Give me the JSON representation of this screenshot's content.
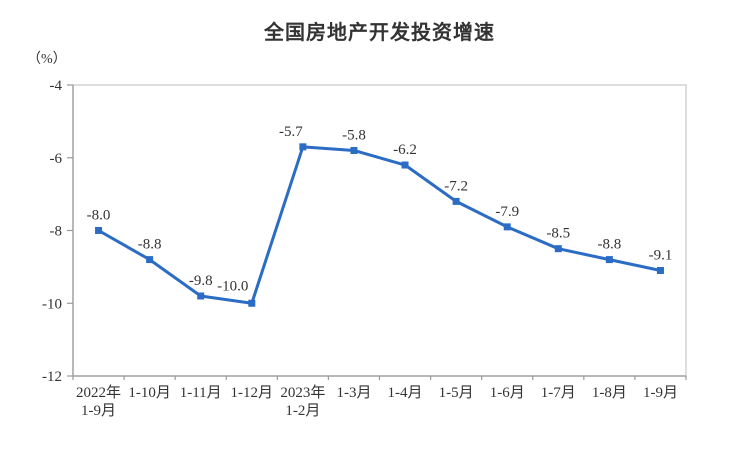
{
  "chart": {
    "title": "全国房地产开发投资增速",
    "unit_label": "（%）"
  },
  "chart_data": {
    "type": "line",
    "title": "全国房地产开发投资增速",
    "ylabel": "（%）",
    "xlabel": "",
    "categories": [
      [
        "2022年",
        "1-9月"
      ],
      [
        "1-10月"
      ],
      [
        "1-11月"
      ],
      [
        "1-12月"
      ],
      [
        "2023年",
        "1-2月"
      ],
      [
        "1-3月"
      ],
      [
        "1-4月"
      ],
      [
        "1-5月"
      ],
      [
        "1-6月"
      ],
      [
        "1-7月"
      ],
      [
        "1-8月"
      ],
      [
        "1-9月"
      ]
    ],
    "values": [
      -8.0,
      -8.8,
      -9.8,
      -10.0,
      -5.7,
      -5.8,
      -6.2,
      -7.2,
      -7.9,
      -8.5,
      -8.8,
      -9.1
    ],
    "point_labels": [
      "-8.0",
      "-8.8",
      "-9.8",
      "-10.0",
      "-5.7",
      "-5.8",
      "-6.2",
      "-7.2",
      "-7.9",
      "-8.5",
      "-8.8",
      "-9.1"
    ],
    "ylim": [
      -12,
      -4
    ],
    "yticks": [
      -4,
      -6,
      -8,
      -10,
      -12
    ],
    "ytick_labels": [
      "-4",
      "-6",
      "-8",
      "-10",
      "-12"
    ],
    "grid": false,
    "legend": "none",
    "marker": "square",
    "line_color": "#2b6cc4",
    "axis_color": "#9a9a9a",
    "plot_border_color": "#d2d2d2",
    "text_color": "#333333"
  }
}
